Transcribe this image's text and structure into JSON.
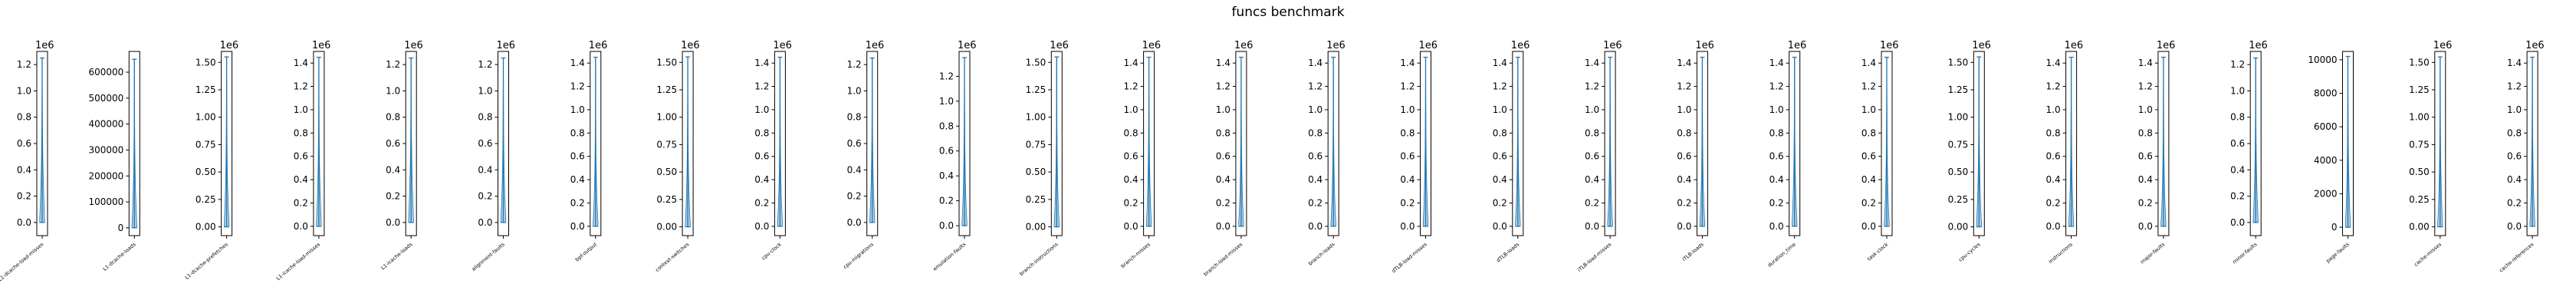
{
  "figure": {
    "title": "funcs benchmark"
  },
  "colors": {
    "violin": "#1f77b4",
    "axis": "#000000",
    "background": "#ffffff"
  },
  "chart_data": {
    "type": "violin",
    "title": "funcs benchmark",
    "panels": [
      {
        "label": "L1-dcache-load-misses",
        "exponent": "1e6",
        "ylim": [
          -0.1,
          1.3
        ],
        "ticks": [
          "0.0",
          "0.2",
          "0.4",
          "0.6",
          "0.8",
          "1.0",
          "1.2"
        ],
        "tick_values": [
          0,
          0.2,
          0.4,
          0.6,
          0.8,
          1.0,
          1.2
        ],
        "data_range": [
          0.0,
          1.25
        ],
        "dist_top": 0.35
      },
      {
        "label": "L1-dcache-loads",
        "exponent": "",
        "ylim": [
          -30000,
          680000
        ],
        "ticks": [
          "0",
          "100000",
          "200000",
          "300000",
          "400000",
          "500000",
          "600000"
        ],
        "tick_values": [
          0,
          100000,
          200000,
          300000,
          400000,
          500000,
          600000
        ],
        "data_range": [
          0,
          650000
        ],
        "dist_top": 150000
      },
      {
        "label": "L1-dcache-prefetches",
        "exponent": "1e6",
        "ylim": [
          -0.08,
          1.6
        ],
        "ticks": [
          "0.00",
          "0.25",
          "0.50",
          "0.75",
          "1.00",
          "1.25",
          "1.50"
        ],
        "tick_values": [
          0,
          0.25,
          0.5,
          0.75,
          1.0,
          1.25,
          1.5
        ],
        "data_range": [
          0.0,
          1.55
        ],
        "dist_top": 0.35
      },
      {
        "label": "L1-icache-load-misses",
        "exponent": "1e6",
        "ylim": [
          -0.08,
          1.5
        ],
        "ticks": [
          "0.0",
          "0.2",
          "0.4",
          "0.6",
          "0.8",
          "1.0",
          "1.2",
          "1.4"
        ],
        "tick_values": [
          0,
          0.2,
          0.4,
          0.6,
          0.8,
          1.0,
          1.2,
          1.4
        ],
        "data_range": [
          0.0,
          1.45
        ],
        "dist_top": 0.35
      },
      {
        "label": "L1-icache-loads",
        "exponent": "1e6",
        "ylim": [
          -0.1,
          1.3
        ],
        "ticks": [
          "0.0",
          "0.2",
          "0.4",
          "0.6",
          "0.8",
          "1.0",
          "1.2"
        ],
        "tick_values": [
          0,
          0.2,
          0.4,
          0.6,
          0.8,
          1.0,
          1.2
        ],
        "data_range": [
          0.0,
          1.25
        ],
        "dist_top": 0.35
      },
      {
        "label": "alignment-faults",
        "exponent": "1e6",
        "ylim": [
          -0.1,
          1.3
        ],
        "ticks": [
          "0.0",
          "0.2",
          "0.4",
          "0.6",
          "0.8",
          "1.0",
          "1.2"
        ],
        "tick_values": [
          0,
          0.2,
          0.4,
          0.6,
          0.8,
          1.0,
          1.2
        ],
        "data_range": [
          0.0,
          1.25
        ],
        "dist_top": 0.3
      },
      {
        "label": "bpf-output",
        "exponent": "1e6",
        "ylim": [
          -0.08,
          1.5
        ],
        "ticks": [
          "0.0",
          "0.2",
          "0.4",
          "0.6",
          "0.8",
          "1.0",
          "1.2",
          "1.4"
        ],
        "tick_values": [
          0,
          0.2,
          0.4,
          0.6,
          0.8,
          1.0,
          1.2,
          1.4
        ],
        "data_range": [
          0.0,
          1.45
        ],
        "dist_top": 0.3
      },
      {
        "label": "context-switches",
        "exponent": "1e6",
        "ylim": [
          -0.08,
          1.6
        ],
        "ticks": [
          "0.00",
          "0.25",
          "0.50",
          "0.75",
          "1.00",
          "1.25",
          "1.50"
        ],
        "tick_values": [
          0,
          0.25,
          0.5,
          0.75,
          1.0,
          1.25,
          1.5
        ],
        "data_range": [
          0.0,
          1.55
        ],
        "dist_top": 0.35
      },
      {
        "label": "cpu-clock",
        "exponent": "1e6",
        "ylim": [
          -0.08,
          1.5
        ],
        "ticks": [
          "0.0",
          "0.2",
          "0.4",
          "0.6",
          "0.8",
          "1.0",
          "1.2",
          "1.4"
        ],
        "tick_values": [
          0,
          0.2,
          0.4,
          0.6,
          0.8,
          1.0,
          1.2,
          1.4
        ],
        "data_range": [
          0.0,
          1.45
        ],
        "dist_top": 0.3
      },
      {
        "label": "cpu-migrations",
        "exponent": "1e6",
        "ylim": [
          -0.1,
          1.3
        ],
        "ticks": [
          "0.0",
          "0.2",
          "0.4",
          "0.6",
          "0.8",
          "1.0",
          "1.2"
        ],
        "tick_values": [
          0,
          0.2,
          0.4,
          0.6,
          0.8,
          1.0,
          1.2
        ],
        "data_range": [
          0.0,
          1.25
        ],
        "dist_top": 0.3
      },
      {
        "label": "emulation-faults",
        "exponent": "1e6",
        "ylim": [
          -0.08,
          1.4
        ],
        "ticks": [
          "0.0",
          "0.2",
          "0.4",
          "0.6",
          "0.8",
          "1.0",
          "1.2"
        ],
        "tick_values": [
          0,
          0.2,
          0.4,
          0.6,
          0.8,
          1.0,
          1.2
        ],
        "data_range": [
          0.0,
          1.35
        ],
        "dist_top": 0.3
      },
      {
        "label": "branch-instructions",
        "exponent": "1e6",
        "ylim": [
          -0.08,
          1.6
        ],
        "ticks": [
          "0.00",
          "0.25",
          "0.50",
          "0.75",
          "1.00",
          "1.25",
          "1.50"
        ],
        "tick_values": [
          0,
          0.25,
          0.5,
          0.75,
          1.0,
          1.25,
          1.5
        ],
        "data_range": [
          0.0,
          1.55
        ],
        "dist_top": 0.35
      },
      {
        "label": "branch-misses",
        "exponent": "1e6",
        "ylim": [
          -0.08,
          1.5
        ],
        "ticks": [
          "0.0",
          "0.2",
          "0.4",
          "0.6",
          "0.8",
          "1.0",
          "1.2",
          "1.4"
        ],
        "tick_values": [
          0,
          0.2,
          0.4,
          0.6,
          0.8,
          1.0,
          1.2,
          1.4
        ],
        "data_range": [
          0.0,
          1.45
        ],
        "dist_top": 0.35
      },
      {
        "label": "branch-load-misses",
        "exponent": "1e6",
        "ylim": [
          -0.08,
          1.5
        ],
        "ticks": [
          "0.0",
          "0.2",
          "0.4",
          "0.6",
          "0.8",
          "1.0",
          "1.2",
          "1.4"
        ],
        "tick_values": [
          0,
          0.2,
          0.4,
          0.6,
          0.8,
          1.0,
          1.2,
          1.4
        ],
        "data_range": [
          0.0,
          1.45
        ],
        "dist_top": 0.3
      },
      {
        "label": "branch-loads",
        "exponent": "1e6",
        "ylim": [
          -0.08,
          1.5
        ],
        "ticks": [
          "0.0",
          "0.2",
          "0.4",
          "0.6",
          "0.8",
          "1.0",
          "1.2",
          "1.4"
        ],
        "tick_values": [
          0,
          0.2,
          0.4,
          0.6,
          0.8,
          1.0,
          1.2,
          1.4
        ],
        "data_range": [
          0.0,
          1.45
        ],
        "dist_top": 0.3
      },
      {
        "label": "dTLB-load-misses",
        "exponent": "1e6",
        "ylim": [
          -0.08,
          1.5
        ],
        "ticks": [
          "0.0",
          "0.2",
          "0.4",
          "0.6",
          "0.8",
          "1.0",
          "1.2",
          "1.4"
        ],
        "tick_values": [
          0,
          0.2,
          0.4,
          0.6,
          0.8,
          1.0,
          1.2,
          1.4
        ],
        "data_range": [
          0.0,
          1.45
        ],
        "dist_top": 0.35
      },
      {
        "label": "dTLB-loads",
        "exponent": "1e6",
        "ylim": [
          -0.08,
          1.5
        ],
        "ticks": [
          "0.0",
          "0.2",
          "0.4",
          "0.6",
          "0.8",
          "1.0",
          "1.2",
          "1.4"
        ],
        "tick_values": [
          0,
          0.2,
          0.4,
          0.6,
          0.8,
          1.0,
          1.2,
          1.4
        ],
        "data_range": [
          0.0,
          1.45
        ],
        "dist_top": 0.3
      },
      {
        "label": "iTLB-load-misses",
        "exponent": "1e6",
        "ylim": [
          -0.08,
          1.5
        ],
        "ticks": [
          "0.0",
          "0.2",
          "0.4",
          "0.6",
          "0.8",
          "1.0",
          "1.2",
          "1.4"
        ],
        "tick_values": [
          0,
          0.2,
          0.4,
          0.6,
          0.8,
          1.0,
          1.2,
          1.4
        ],
        "data_range": [
          0.0,
          1.45
        ],
        "dist_top": 0.3
      },
      {
        "label": "iTLB-loads",
        "exponent": "1e6",
        "ylim": [
          -0.08,
          1.5
        ],
        "ticks": [
          "0.0",
          "0.2",
          "0.4",
          "0.6",
          "0.8",
          "1.0",
          "1.2",
          "1.4"
        ],
        "tick_values": [
          0,
          0.2,
          0.4,
          0.6,
          0.8,
          1.0,
          1.2,
          1.4
        ],
        "data_range": [
          0.0,
          1.45
        ],
        "dist_top": 0.3
      },
      {
        "label": "duration_time",
        "exponent": "1e6",
        "ylim": [
          -0.08,
          1.5
        ],
        "ticks": [
          "0.0",
          "0.2",
          "0.4",
          "0.6",
          "0.8",
          "1.0",
          "1.2",
          "1.4"
        ],
        "tick_values": [
          0,
          0.2,
          0.4,
          0.6,
          0.8,
          1.0,
          1.2,
          1.4
        ],
        "data_range": [
          0.0,
          1.45
        ],
        "dist_top": 0.35
      },
      {
        "label": "task-clock",
        "exponent": "1e6",
        "ylim": [
          -0.08,
          1.5
        ],
        "ticks": [
          "0.0",
          "0.2",
          "0.4",
          "0.6",
          "0.8",
          "1.0",
          "1.2",
          "1.4"
        ],
        "tick_values": [
          0,
          0.2,
          0.4,
          0.6,
          0.8,
          1.0,
          1.2,
          1.4
        ],
        "data_range": [
          0.0,
          1.45
        ],
        "dist_top": 0.3
      },
      {
        "label": "cpu-cycles",
        "exponent": "1e6",
        "ylim": [
          -0.08,
          1.6
        ],
        "ticks": [
          "0.00",
          "0.25",
          "0.50",
          "0.75",
          "1.00",
          "1.25",
          "1.50"
        ],
        "tick_values": [
          0,
          0.25,
          0.5,
          0.75,
          1.0,
          1.25,
          1.5
        ],
        "data_range": [
          0.0,
          1.55
        ],
        "dist_top": 0.35
      },
      {
        "label": "instructions",
        "exponent": "1e6",
        "ylim": [
          -0.08,
          1.5
        ],
        "ticks": [
          "0.0",
          "0.2",
          "0.4",
          "0.6",
          "0.8",
          "1.0",
          "1.2",
          "1.4"
        ],
        "tick_values": [
          0,
          0.2,
          0.4,
          0.6,
          0.8,
          1.0,
          1.2,
          1.4
        ],
        "data_range": [
          0.0,
          1.45
        ],
        "dist_top": 0.3
      },
      {
        "label": "major-faults",
        "exponent": "1e6",
        "ylim": [
          -0.08,
          1.5
        ],
        "ticks": [
          "0.0",
          "0.2",
          "0.4",
          "0.6",
          "0.8",
          "1.0",
          "1.2",
          "1.4"
        ],
        "tick_values": [
          0,
          0.2,
          0.4,
          0.6,
          0.8,
          1.0,
          1.2,
          1.4
        ],
        "data_range": [
          0.0,
          1.45
        ],
        "dist_top": 0.3
      },
      {
        "label": "minor-faults",
        "exponent": "1e6",
        "ylim": [
          -0.1,
          1.3
        ],
        "ticks": [
          "0.0",
          "0.2",
          "0.4",
          "0.6",
          "0.8",
          "1.0",
          "1.2"
        ],
        "tick_values": [
          0,
          0.2,
          0.4,
          0.6,
          0.8,
          1.0,
          1.2
        ],
        "data_range": [
          0.0,
          1.25
        ],
        "dist_top": 0.3
      },
      {
        "label": "page-faults",
        "exponent": "",
        "ylim": [
          -500,
          10500
        ],
        "ticks": [
          "0",
          "2000",
          "4000",
          "6000",
          "8000",
          "10000"
        ],
        "tick_values": [
          0,
          2000,
          4000,
          6000,
          8000,
          10000
        ],
        "data_range": [
          0,
          10200
        ],
        "dist_top": 2500
      },
      {
        "label": "cache-misses",
        "exponent": "1e6",
        "ylim": [
          -0.08,
          1.6
        ],
        "ticks": [
          "0.00",
          "0.25",
          "0.50",
          "0.75",
          "1.00",
          "1.25",
          "1.50"
        ],
        "tick_values": [
          0,
          0.25,
          0.5,
          0.75,
          1.0,
          1.25,
          1.5
        ],
        "data_range": [
          0.0,
          1.55
        ],
        "dist_top": 0.35
      },
      {
        "label": "cache-references",
        "exponent": "1e6",
        "ylim": [
          -0.08,
          1.5
        ],
        "ticks": [
          "0.0",
          "0.2",
          "0.4",
          "0.6",
          "0.8",
          "1.0",
          "1.2",
          "1.4"
        ],
        "tick_values": [
          0,
          0.2,
          0.4,
          0.6,
          0.8,
          1.0,
          1.2,
          1.4
        ],
        "data_range": [
          0.0,
          1.45
        ],
        "dist_top": 0.35
      }
    ]
  }
}
